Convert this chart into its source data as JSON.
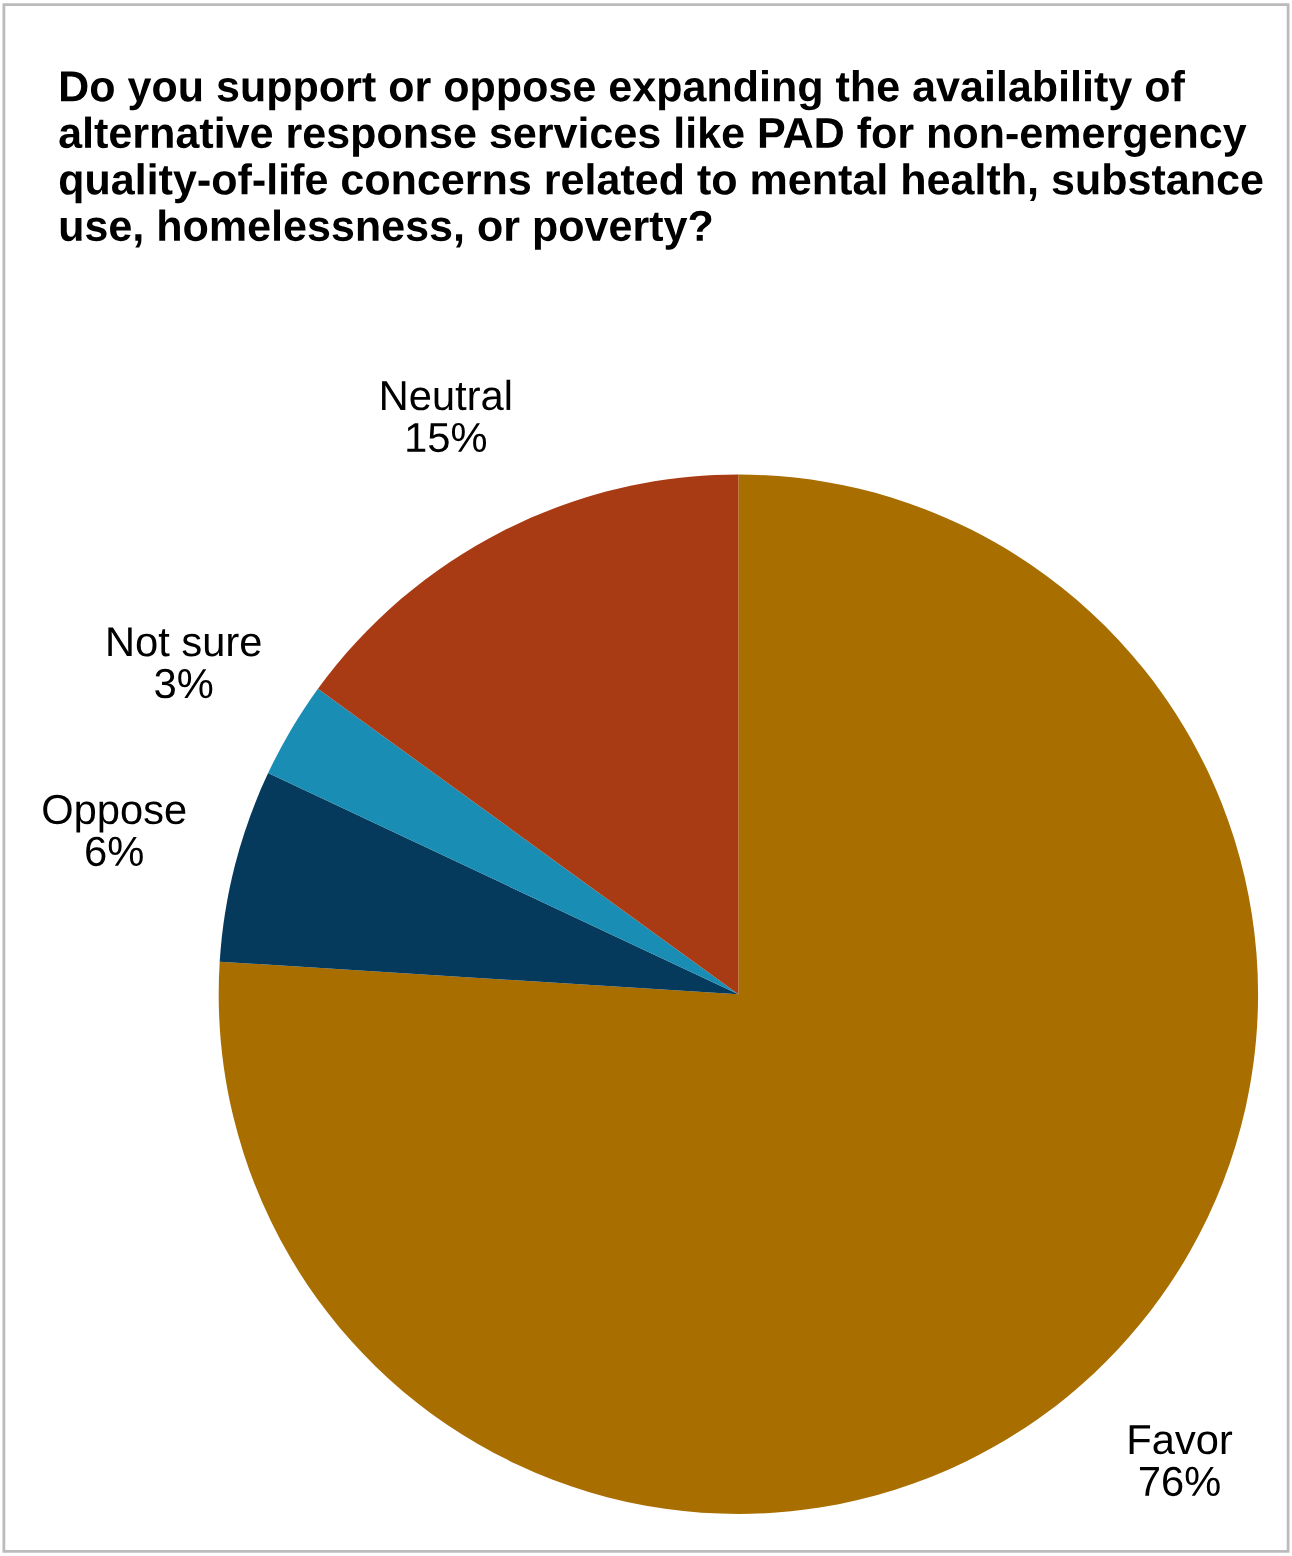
{
  "chart_data": {
    "type": "pie",
    "title": "Do you support or oppose expanding the availability of alternative response services like PAD for non-emergency quality-of-life concerns related to mental health, substance use, homelessness, or poverty?",
    "categories": [
      "Favor",
      "Oppose",
      "Not sure",
      "Neutral"
    ],
    "values": [
      76,
      6,
      3,
      15
    ],
    "value_labels": [
      "76%",
      "6%",
      "3%",
      "15%"
    ],
    "colors": [
      "#a86e00",
      "#063a5c",
      "#1a8db4",
      "#a83b14"
    ],
    "legend": false
  }
}
